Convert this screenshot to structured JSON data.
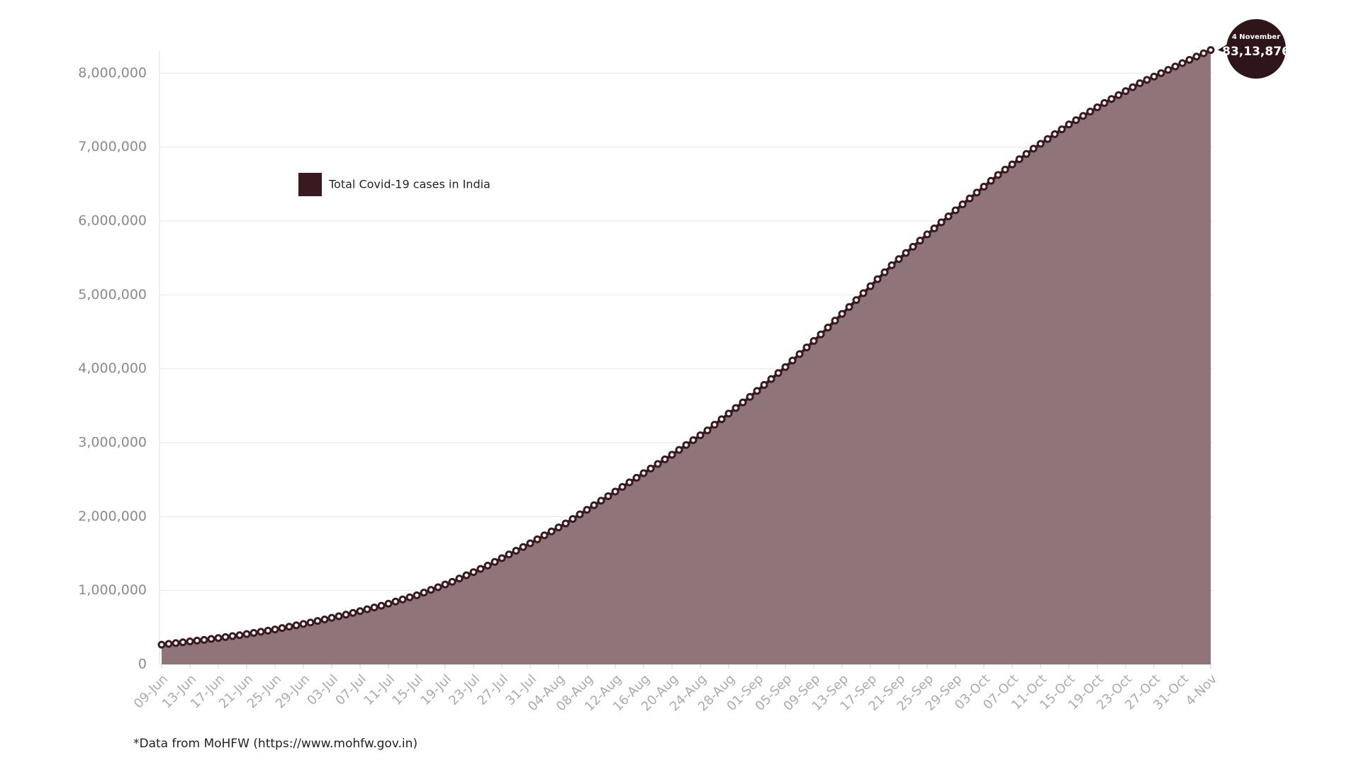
{
  "chart_data": {
    "type": "area",
    "categories": [
      "09-Jun",
      null,
      null,
      null,
      "13-Jun",
      null,
      null,
      null,
      "17-Jun",
      null,
      null,
      null,
      "21-Jun",
      null,
      null,
      null,
      "25-Jun",
      null,
      null,
      null,
      "29-Jun",
      null,
      null,
      null,
      "03-Jul",
      null,
      null,
      null,
      "07-Jul",
      null,
      null,
      null,
      "11-Jul",
      null,
      null,
      null,
      "15-Jul",
      null,
      null,
      null,
      "19-Jul",
      null,
      null,
      null,
      "23-Jul",
      null,
      null,
      null,
      "27-Jul",
      null,
      null,
      null,
      "31-Jul",
      null,
      null,
      null,
      "04-Aug",
      null,
      null,
      null,
      "08-Aug",
      null,
      null,
      null,
      "12-Aug",
      null,
      null,
      null,
      "16-Aug",
      null,
      null,
      null,
      "20-Aug",
      null,
      null,
      null,
      "24-Aug",
      null,
      null,
      null,
      "28-Aug",
      null,
      null,
      null,
      "01-Sep",
      null,
      null,
      null,
      "05-Sep",
      null,
      null,
      null,
      "09-Sep",
      null,
      null,
      null,
      "13-Sep",
      null,
      null,
      null,
      "17-Sep",
      null,
      null,
      null,
      "21-Sep",
      null,
      null,
      null,
      "25-Sep",
      null,
      null,
      null,
      "29-Sep",
      null,
      null,
      null,
      "03-Oct",
      null,
      null,
      null,
      "07-Oct",
      null,
      null,
      null,
      "11-Oct",
      null,
      null,
      null,
      "15-Oct",
      null,
      null,
      null,
      "19-Oct",
      null,
      null,
      null,
      "23-Oct",
      null,
      null,
      null,
      "27-Oct",
      null,
      null,
      null,
      "31-Oct",
      null,
      null,
      null,
      "4-Nov"
    ],
    "series": [
      {
        "name": "Total Covid-19 cases in India",
        "color": "#3b1a1f",
        "fill": "#8f747a",
        "values": [
          267000,
          278000,
          289000,
          300000,
          311000,
          322000,
          332000,
          345000,
          357000,
          370000,
          383000,
          395000,
          411000,
          426000,
          442000,
          457000,
          473000,
          492000,
          511000,
          529000,
          548000,
          567000,
          588000,
          609000,
          631000,
          652000,
          673000,
          697000,
          721000,
          746000,
          770000,
          794000,
          822000,
          851000,
          879000,
          908000,
          936000,
          972000,
          1009000,
          1045000,
          1082000,
          1118000,
          1162000,
          1206000,
          1249000,
          1293000,
          1337000,
          1387000,
          1438000,
          1488000,
          1538000,
          1589000,
          1639000,
          1693000,
          1747000,
          1800000,
          1854000,
          1908000,
          1969000,
          2031000,
          2092000,
          2154000,
          2215000,
          2277000,
          2339000,
          2402000,
          2464000,
          2526000,
          2588000,
          2650000,
          2713000,
          2775000,
          2837000,
          2903000,
          2969000,
          3035000,
          3101000,
          3167000,
          3243000,
          3318000,
          3394000,
          3470000,
          3545000,
          3621000,
          3701000,
          3782000,
          3862000,
          3943000,
          4023000,
          4112000,
          4200000,
          4289000,
          4377000,
          4466000,
          4559000,
          4652000,
          4744000,
          4837000,
          4930000,
          5024000,
          5118000,
          5213000,
          5307000,
          5401000,
          5485000,
          5568000,
          5652000,
          5735000,
          5819000,
          5900000,
          5982000,
          6063000,
          6145000,
          6226000,
          6306000,
          6385000,
          6465000,
          6544000,
          6624000,
          6695000,
          6766000,
          6837000,
          6908000,
          6979000,
          7045000,
          7110000,
          7176000,
          7241000,
          7307000,
          7365000,
          7423000,
          7481000,
          7539000,
          7597000,
          7651000,
          7704000,
          7758000,
          7811000,
          7865000,
          7910000,
          7955000,
          8001000,
          8046000,
          8091000,
          8137000,
          8181000,
          8225000,
          8270000,
          8313876
        ]
      }
    ],
    "ylim": [
      0,
      8320000
    ],
    "yticks": [
      0,
      {
        "value": 1000000,
        "label": "1,000,000"
      },
      {
        "value": 2000000,
        "label": "2,000,000"
      },
      {
        "value": 3000000,
        "label": "3,000,000"
      },
      {
        "value": 4000000,
        "label": "4,000,000"
      },
      {
        "value": 5000000,
        "label": "5,000,000"
      },
      {
        "value": 6000000,
        "label": "6,000,000"
      },
      {
        "value": 7000000,
        "label": "7,000,000"
      },
      {
        "value": 8000000,
        "label": "8,000,000"
      }
    ],
    "grid": true,
    "legend": "upper left",
    "annotation": {
      "title": "4 November",
      "value": 8313876,
      "label": "83,13,876"
    },
    "source": "*Data from MoHFW (https://www.mohfw.gov.in)"
  }
}
